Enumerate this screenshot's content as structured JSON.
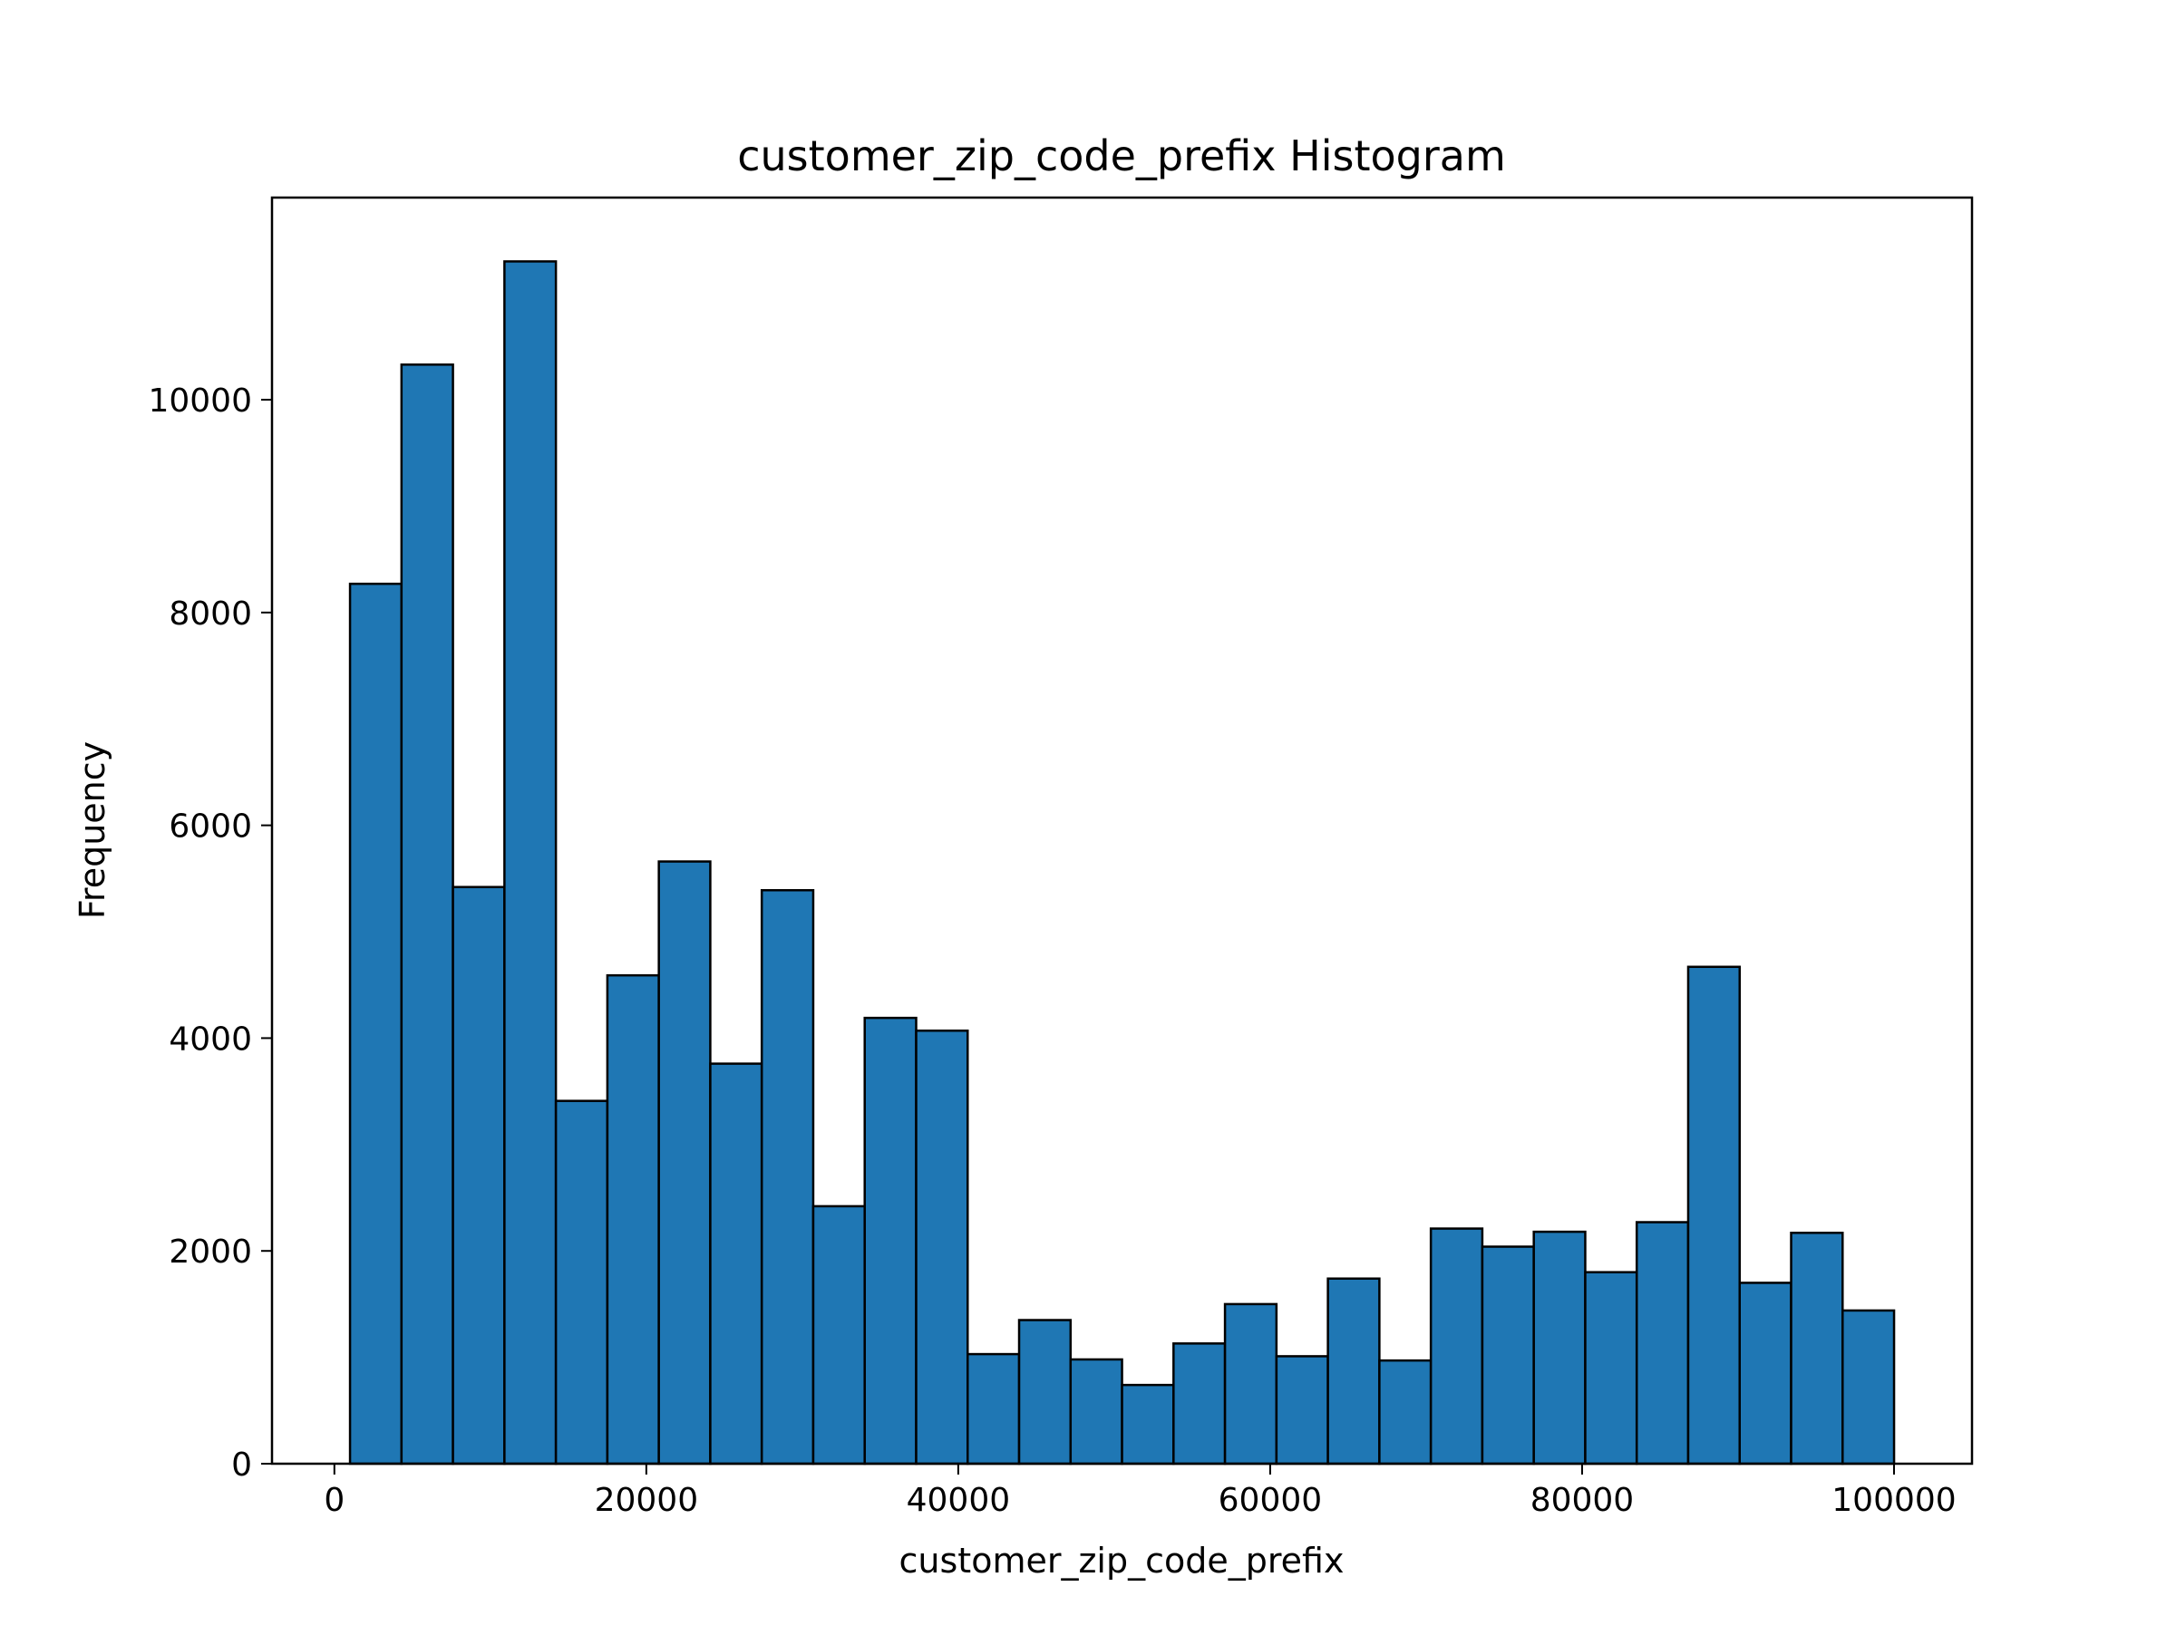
{
  "chart_data": {
    "type": "bar",
    "title": "customer_zip_code_prefix Histogram",
    "xlabel": "customer_zip_code_prefix",
    "ylabel": "Frequency",
    "bin_edges": [
      1003,
      4303,
      7603,
      10903,
      14203,
      17503,
      20803,
      24103,
      27403,
      30703,
      34003,
      37303,
      40603,
      43903,
      47203,
      50503,
      53803,
      57103,
      60403,
      63703,
      67003,
      70303,
      73603,
      76903,
      80203,
      83503,
      86803,
      90103,
      93403,
      96703,
      100003
    ],
    "values": [
      8270,
      10330,
      5420,
      11300,
      3410,
      4590,
      5660,
      3760,
      5390,
      2420,
      4190,
      4070,
      1030,
      1350,
      980,
      740,
      1130,
      1500,
      1010,
      1740,
      970,
      2210,
      2040,
      2180,
      1800,
      2270,
      4670,
      1700,
      2170,
      1440
    ],
    "xlim": [
      -4000,
      105000
    ],
    "ylim": [
      0,
      11900
    ],
    "xticks": [
      0,
      20000,
      40000,
      60000,
      80000,
      100000
    ],
    "xtick_labels": [
      "0",
      "20000",
      "40000",
      "60000",
      "80000",
      "100000"
    ],
    "yticks": [
      0,
      2000,
      4000,
      6000,
      8000,
      10000
    ],
    "ytick_labels": [
      "0",
      "2000",
      "4000",
      "6000",
      "8000",
      "10000"
    ],
    "grid": false,
    "colors": {
      "bar_fill": "#1f77b4",
      "bar_edge": "#000000"
    }
  }
}
